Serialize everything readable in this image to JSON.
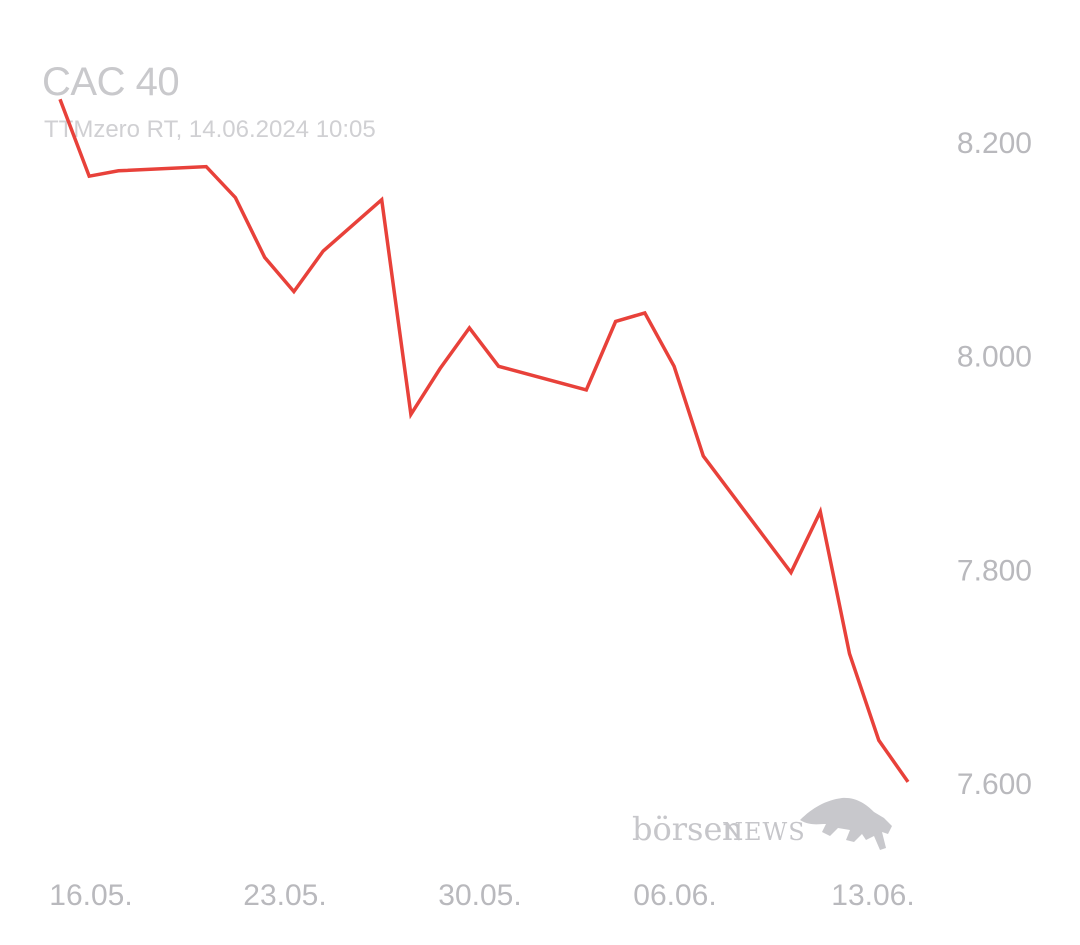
{
  "header": {
    "title": "CAC 40",
    "subtitle": "TTMzero RT, 14.06.2024 10:05"
  },
  "watermark": {
    "brand_lower": "börsen",
    "brand_upper": "NEWS",
    "icon": "bull-icon"
  },
  "colors": {
    "line": "#e8413a",
    "label": "#b9b9bd"
  },
  "chart_data": {
    "type": "line",
    "title": "CAC 40",
    "subtitle": "TTMzero RT, 14.06.2024 10:05",
    "x": [
      "2024-05-16",
      "2024-05-17",
      "2024-05-18",
      "2024-05-21",
      "2024-05-22",
      "2024-05-23",
      "2024-05-24",
      "2024-05-25",
      "2024-05-27",
      "2024-05-28",
      "2024-05-29",
      "2024-05-30",
      "2024-05-31",
      "2024-06-03",
      "2024-06-04",
      "2024-06-05",
      "2024-06-06",
      "2024-06-07",
      "2024-06-10",
      "2024-06-11",
      "2024-06-12",
      "2024-06-13",
      "2024-06-14"
    ],
    "values": [
      8240,
      8168,
      8173,
      8177,
      8148,
      8092,
      8060,
      8098,
      8146,
      7945,
      7988,
      8026,
      7990,
      7968,
      8032,
      8040,
      7990,
      7906,
      7797,
      7854,
      7721,
      7640,
      7601
    ],
    "x_tick_labels": [
      "16.05.",
      "23.05.",
      "30.05.",
      "06.06.",
      "13.06."
    ],
    "y_tick_labels": [
      "8.200",
      "8.000",
      "7.800",
      "7.600"
    ],
    "y_ticks": [
      8200,
      8000,
      7800,
      7600
    ],
    "ylim": [
      7600,
      8200
    ],
    "grid": false,
    "legend": "none"
  }
}
